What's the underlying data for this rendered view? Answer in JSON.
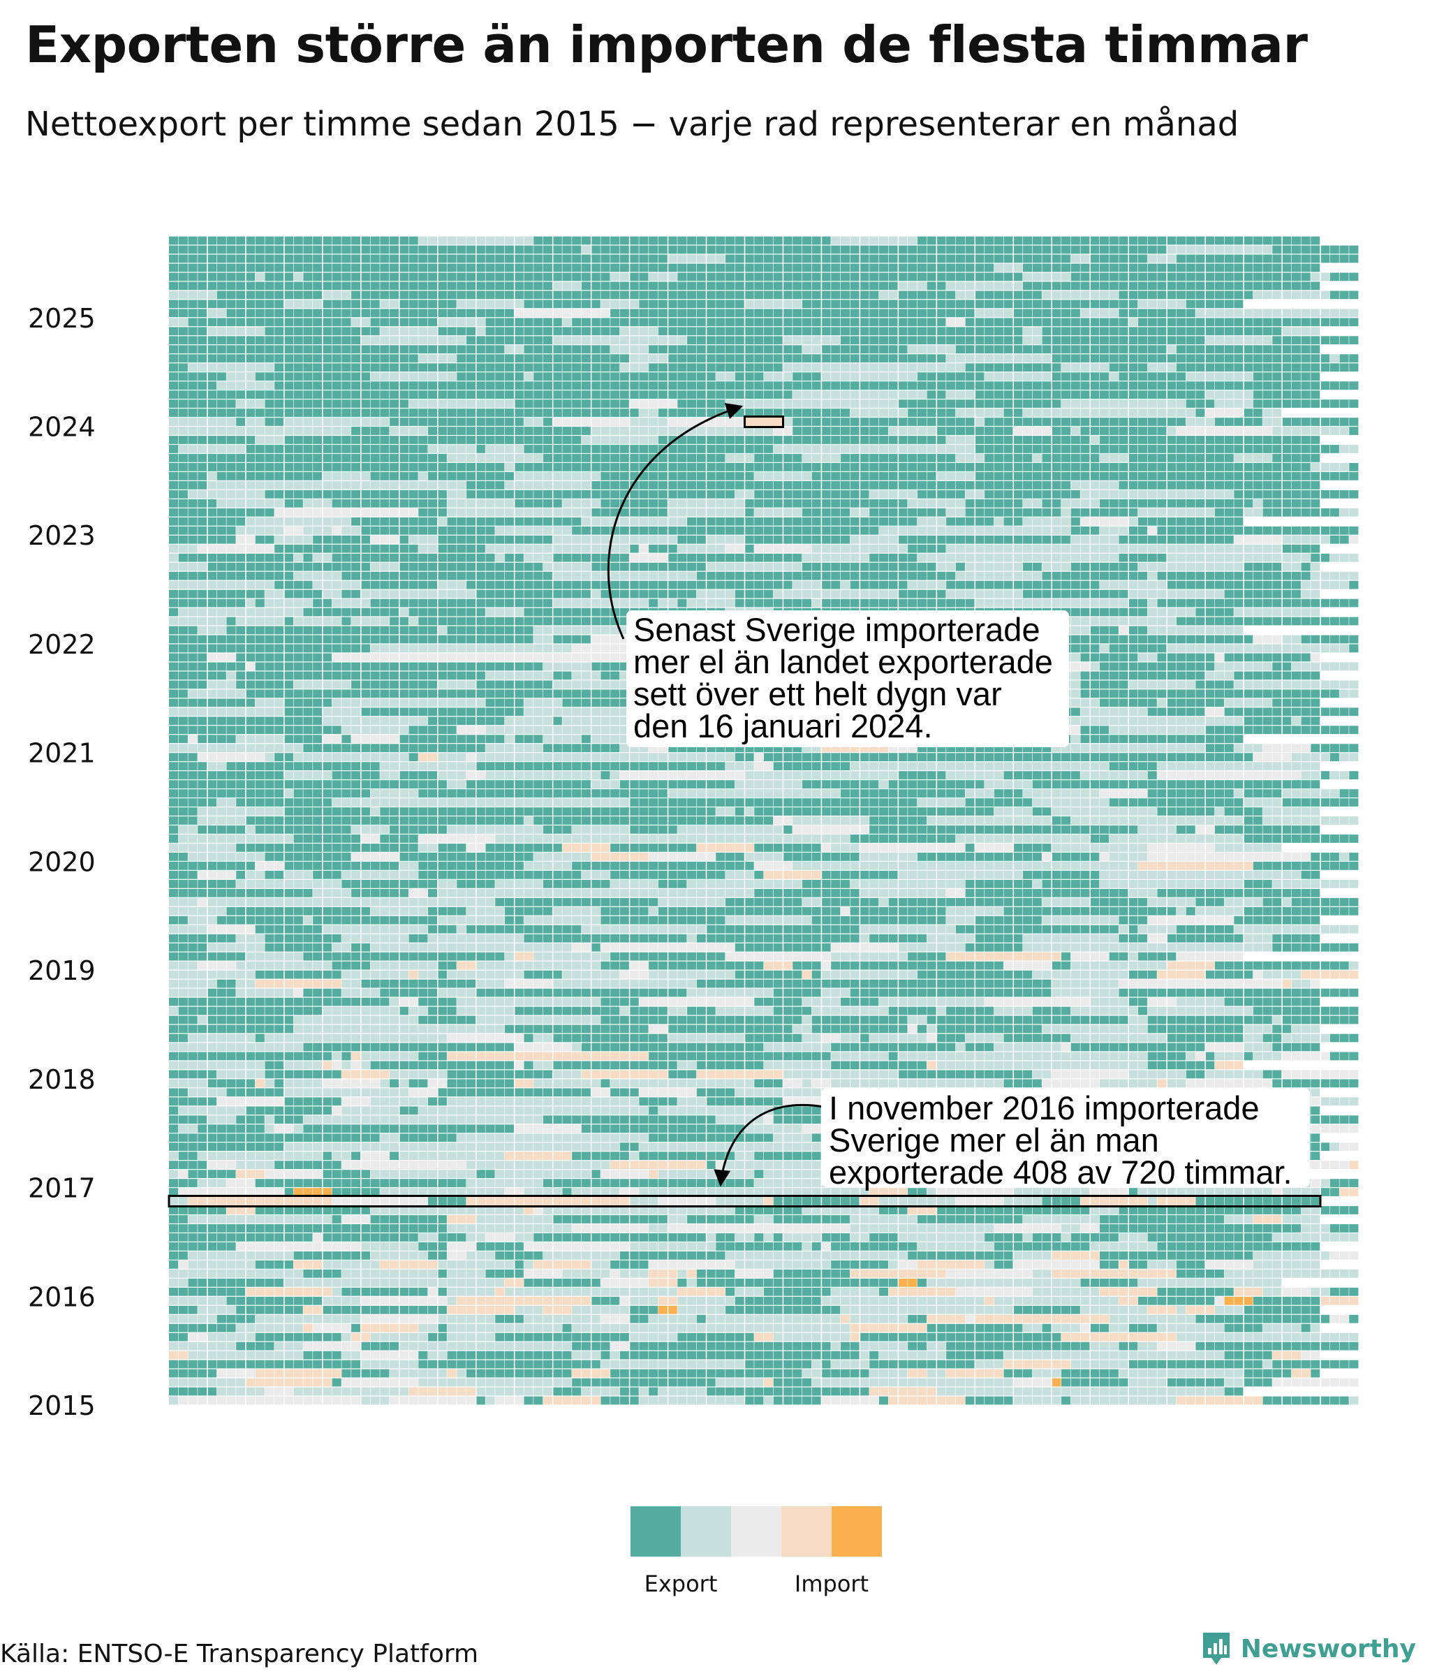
{
  "title": "Exporten större än importen de flesta timmar",
  "subtitle": "Nettoexport per timme sedan 2015 − varje rad representerar en månad",
  "source": "Källa: ENTSO-E Transparency Platform",
  "brand": "Newsworthy",
  "colors": {
    "export_strong": "#55ad9f",
    "export_weak": "#c8e0db",
    "neutral": "#ebebeb",
    "import_weak": "#f6dcc4",
    "import_strong": "#f9b04d",
    "grid": "#ffffff",
    "brand": "#3f9f93"
  },
  "chart_data": {
    "type": "heatmap",
    "title": "Exporten större än importen de flesta timmar",
    "subtitle": "Nettoexport per timme sedan 2015 − varje rad representerar en månad",
    "y_axis": {
      "unit": "month",
      "first_month": "2015-01",
      "last_month": "2025-09",
      "tick_labels": [
        "2015",
        "2016",
        "2017",
        "2018",
        "2019",
        "2020",
        "2021",
        "2022",
        "2023",
        "2024",
        "2025"
      ]
    },
    "x_axis": {
      "unit": "hour of month",
      "max_hours": 744,
      "labels_shown": false
    },
    "legend": {
      "position": "bottom-center",
      "labels": [
        "Export",
        "Import"
      ],
      "bins": [
        "export_strong",
        "export_weak",
        "neutral",
        "import_weak",
        "import_strong"
      ]
    },
    "annotations": [
      {
        "lines": [
          "Senast Sverige importerade",
          "mer el än landet exporterade",
          "sett över ett helt dygn var",
          "den 16 januari 2024."
        ],
        "highlight_date": "2024-01-16",
        "highlight_hours": [
          360,
          384
        ]
      },
      {
        "lines": [
          "I november 2016 importerade",
          "Sverige mer el än man",
          "exporterade 408 av 720 timmar."
        ],
        "highlight_month": "2016-11",
        "import_hours": 408,
        "total_hours": 720
      }
    ]
  }
}
